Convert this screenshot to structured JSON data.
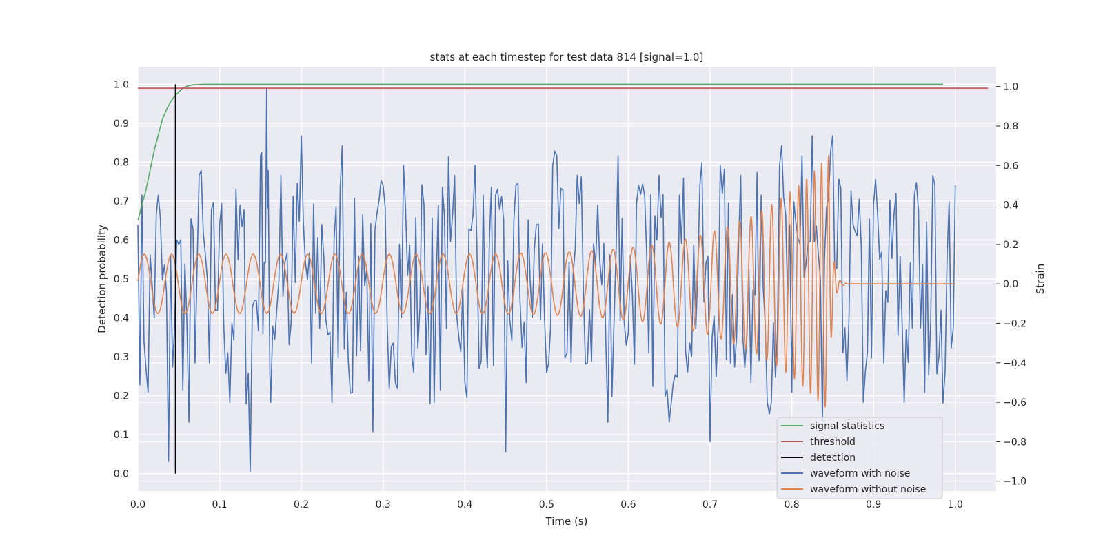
{
  "chart_data": {
    "type": "line",
    "title": "stats at each timestep for test data 814 [signal=1.0]",
    "xlabel": "Time (s)",
    "ylabel": "Detection probability",
    "y2label": "Strain",
    "xlim": [
      0.0,
      1.05
    ],
    "ylim": [
      -0.045,
      1.045
    ],
    "y2lim": [
      -1.05,
      1.1
    ],
    "x_ticks": [
      "0.0",
      "0.1",
      "0.2",
      "0.3",
      "0.4",
      "0.5",
      "0.6",
      "0.7",
      "0.8",
      "0.9",
      "1.0"
    ],
    "y_ticks": [
      "0.0",
      "0.1",
      "0.2",
      "0.3",
      "0.4",
      "0.5",
      "0.6",
      "0.7",
      "0.8",
      "0.9",
      "1.0"
    ],
    "y2_ticks": [
      "-1.0",
      "-0.8",
      "-0.6",
      "-0.4",
      "-0.2",
      "0.0",
      "0.2",
      "0.4",
      "0.6",
      "0.8",
      "1.0"
    ],
    "grid": true,
    "legend_position": "lower-right",
    "series": [
      {
        "name": "signal statistics",
        "axis": "left",
        "color": "#55a868",
        "x": [
          0.0,
          0.005,
          0.01,
          0.015,
          0.02,
          0.025,
          0.03,
          0.035,
          0.04,
          0.045,
          0.05,
          0.055,
          0.06,
          0.065,
          0.07,
          0.08,
          0.1,
          0.2,
          0.4,
          0.6,
          0.8,
          0.985
        ],
        "y": [
          0.65,
          0.69,
          0.73,
          0.78,
          0.83,
          0.87,
          0.91,
          0.935,
          0.955,
          0.97,
          0.98,
          0.99,
          0.995,
          0.998,
          0.999,
          1.0,
          1.0,
          1.0,
          1.0,
          1.0,
          1.0,
          1.0
        ]
      },
      {
        "name": "threshold",
        "axis": "left",
        "color": "#c44e52",
        "x": [
          0.0,
          1.04
        ],
        "y": [
          0.99,
          0.99
        ]
      },
      {
        "name": "detection",
        "axis": "left",
        "color": "#000000",
        "x": [
          0.046,
          0.046
        ],
        "y": [
          0.0,
          1.0
        ]
      },
      {
        "name": "waveform with noise",
        "axis": "right",
        "color": "#4c72b0",
        "x": [
          0.0,
          0.0125,
          0.025,
          0.0375,
          0.05,
          0.0625,
          0.075,
          0.0875,
          0.1,
          0.1125,
          0.125,
          0.1375,
          0.15,
          0.1575,
          0.1625,
          0.175,
          0.1875,
          0.2,
          0.2125,
          0.225,
          0.2375,
          0.25,
          0.2625,
          0.275,
          0.2875,
          0.3,
          0.3125,
          0.325,
          0.3375,
          0.35,
          0.3625,
          0.375,
          0.3875,
          0.4,
          0.4125,
          0.425,
          0.4375,
          0.45,
          0.4625,
          0.475,
          0.4875,
          0.5,
          0.5125,
          0.525,
          0.5375,
          0.55,
          0.5625,
          0.575,
          0.5875,
          0.6,
          0.6125,
          0.625,
          0.6375,
          0.65,
          0.6625,
          0.675,
          0.6875,
          0.7,
          0.7125,
          0.725,
          0.7375,
          0.75,
          0.7625,
          0.775,
          0.7875,
          0.8,
          0.8125,
          0.825,
          0.8375,
          0.85,
          0.8625,
          0.875,
          0.8875,
          0.9,
          0.9125,
          0.925,
          0.9375,
          0.95,
          0.9625,
          0.975,
          0.9875,
          1.0
        ],
        "y": [
          0.3,
          -0.55,
          0.45,
          -0.9,
          0.2,
          -0.7,
          0.55,
          -0.4,
          0.3,
          -0.6,
          0.4,
          -0.95,
          0.65,
          1.0,
          -0.6,
          0.55,
          -0.2,
          0.75,
          -0.4,
          0.3,
          -0.6,
          0.7,
          -0.55,
          0.35,
          -0.75,
          0.5,
          -0.3,
          0.6,
          -0.45,
          0.4,
          -0.6,
          0.35,
          0.55,
          -0.5,
          0.6,
          -0.2,
          0.45,
          -0.85,
          0.5,
          -0.5,
          0.3,
          -0.45,
          0.65,
          -0.35,
          0.55,
          -0.4,
          0.4,
          -0.7,
          0.65,
          -0.25,
          0.5,
          -0.35,
          0.55,
          -0.7,
          0.45,
          -0.3,
          0.5,
          -0.8,
          0.6,
          -0.4,
          0.55,
          -0.5,
          0.45,
          -0.6,
          0.7,
          -0.55,
          0.65,
          0.75,
          -0.7,
          0.75,
          -0.35,
          0.3,
          -0.6,
          0.4,
          -0.4,
          0.35,
          -0.6,
          0.45,
          -0.55,
          0.5,
          -0.45,
          0.5
        ]
      },
      {
        "name": "waveform without noise",
        "axis": "right",
        "color": "#dd8452",
        "x": [
          0.0,
          1.0
        ],
        "y": [
          0.0,
          0.0
        ],
        "description": "chirp: amplitude ~0.15 growing to ~0.65 near t=0.83 s, merger at ~0.845 s, flat 0 afterwards"
      }
    ]
  }
}
